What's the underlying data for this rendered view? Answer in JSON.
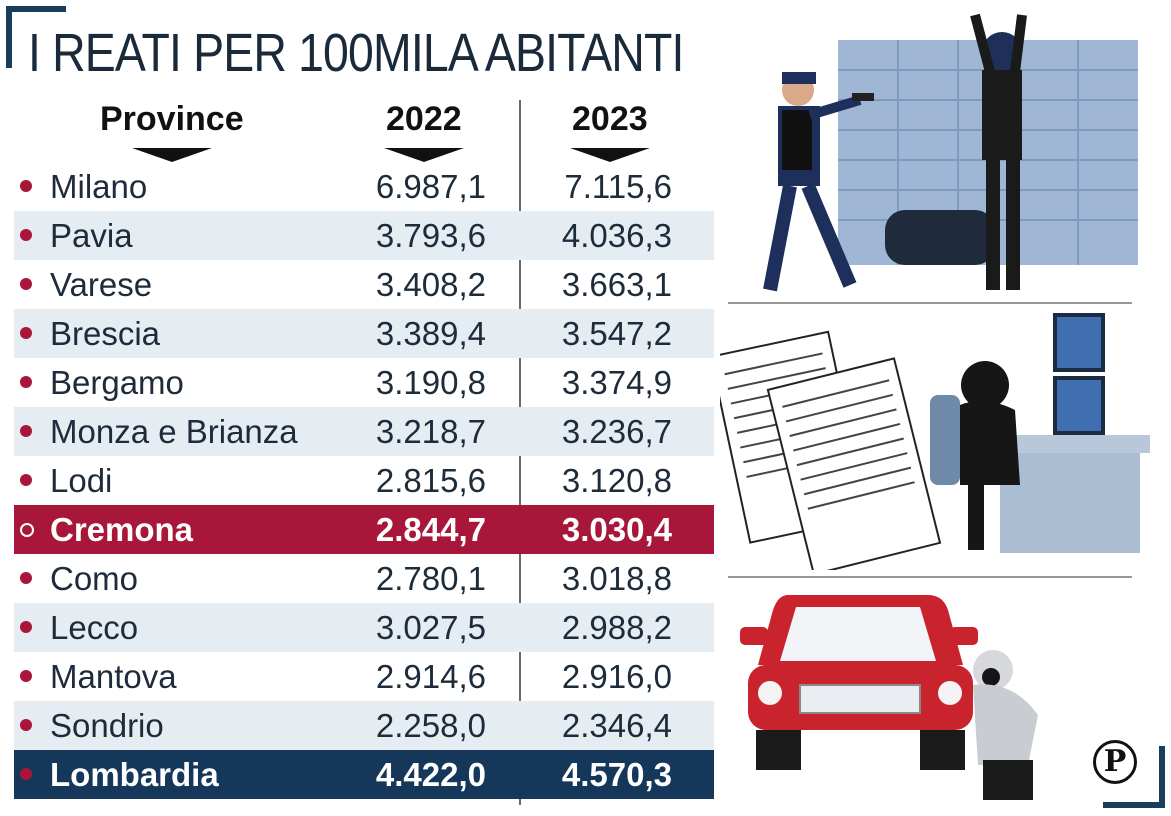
{
  "title": "I REATI PER 100MILA ABITANTI",
  "chart_data": {
    "type": "table",
    "title": "I REATI PER 100MILA ABITANTI",
    "columns": [
      "Province",
      "2022",
      "2023"
    ],
    "rows": [
      {
        "province": "Milano",
        "y2022": "6.987,1",
        "y2023": "7.115,6"
      },
      {
        "province": "Pavia",
        "y2022": "3.793,6",
        "y2023": "4.036,3"
      },
      {
        "province": "Varese",
        "y2022": "3.408,2",
        "y2023": "3.663,1"
      },
      {
        "province": "Brescia",
        "y2022": "3.389,4",
        "y2023": "3.547,2"
      },
      {
        "province": "Bergamo",
        "y2022": "3.190,8",
        "y2023": "3.374,9"
      },
      {
        "province": "Monza e Brianza",
        "y2022": "3.218,7",
        "y2023": "3.236,7"
      },
      {
        "province": "Lodi",
        "y2022": "2.815,6",
        "y2023": "3.120,8"
      },
      {
        "province": "Cremona",
        "y2022": "2.844,7",
        "y2023": "3.030,4",
        "highlight": "red"
      },
      {
        "province": "Como",
        "y2022": "2.780,1",
        "y2023": "3.018,8"
      },
      {
        "province": "Lecco",
        "y2022": "3.027,5",
        "y2023": "2.988,2"
      },
      {
        "province": "Mantova",
        "y2022": "2.914,6",
        "y2023": "2.916,0"
      },
      {
        "province": "Sondrio",
        "y2022": "2.258,0",
        "y2023": "2.346,4"
      },
      {
        "province": "Lombardia",
        "y2022": "4.422,0",
        "y2023": "4.570,3",
        "highlight": "blue"
      }
    ]
  },
  "colors": {
    "accent_red": "#a8173a",
    "accent_blue": "#15375a",
    "row_alt": "#e5edf3"
  },
  "icons": [
    "robbery-illustration-icon",
    "cybercrime-illustration-icon",
    "car-theft-illustration-icon",
    "publisher-logo-icon"
  ],
  "logo": "P"
}
